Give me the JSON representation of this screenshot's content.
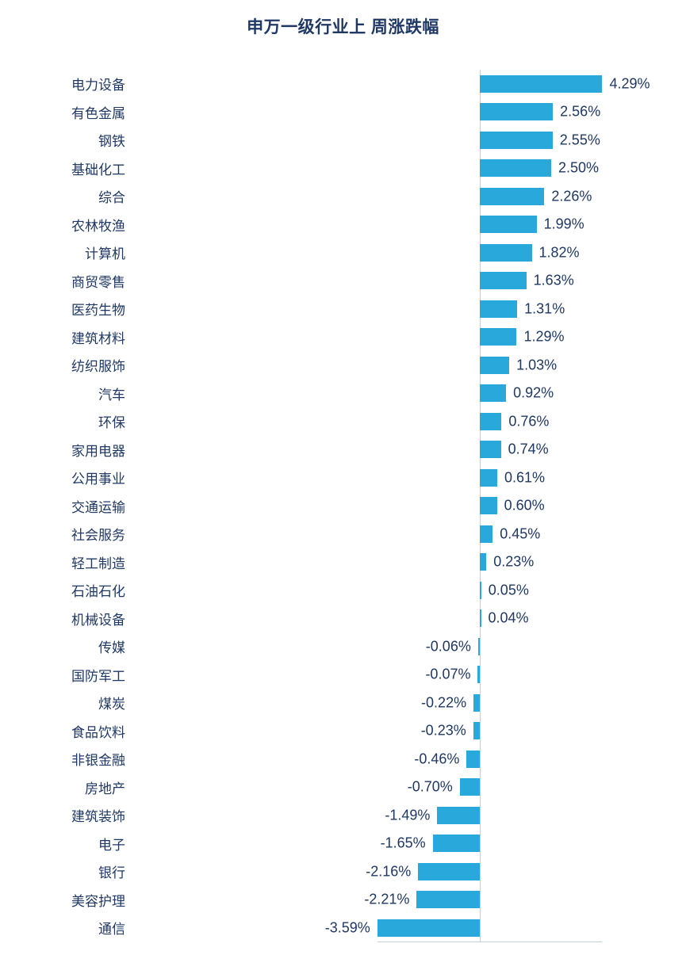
{
  "title": "申万一级行业上 周涨跌幅",
  "chart_data": {
    "type": "bar",
    "orientation": "horizontal",
    "title": "申万一级行业上 周涨跌幅",
    "categories": [
      "电力设备",
      "有色金属",
      "钢铁",
      "基础化工",
      "综合",
      "农林牧渔",
      "计算机",
      "商贸零售",
      "医药生物",
      "建筑材料",
      "纺织服饰",
      "汽车",
      "环保",
      "家用电器",
      "公用事业",
      "交通运输",
      "社会服务",
      "轻工制造",
      "石油石化",
      "机械设备",
      "传媒",
      "国防军工",
      "煤炭",
      "食品饮料",
      "非银金融",
      "房地产",
      "建筑装饰",
      "电子",
      "银行",
      "美容护理",
      "通信"
    ],
    "values": [
      4.29,
      2.56,
      2.55,
      2.5,
      2.26,
      1.99,
      1.82,
      1.63,
      1.31,
      1.29,
      1.03,
      0.92,
      0.76,
      0.74,
      0.61,
      0.6,
      0.45,
      0.23,
      0.05,
      0.04,
      -0.06,
      -0.07,
      -0.22,
      -0.23,
      -0.46,
      -0.7,
      -1.49,
      -1.65,
      -2.16,
      -2.21,
      -3.59
    ],
    "labels": [
      "4.29%",
      "2.56%",
      "2.55%",
      "2.50%",
      "2.26%",
      "1.99%",
      "1.82%",
      "1.63%",
      "1.31%",
      "1.29%",
      "1.03%",
      "0.92%",
      "0.76%",
      "0.74%",
      "0.61%",
      "0.60%",
      "0.45%",
      "0.23%",
      "0.05%",
      "0.04%",
      "-0.06%",
      "-0.07%",
      "-0.22%",
      "-0.23%",
      "-0.46%",
      "-0.70%",
      "-1.49%",
      "-1.65%",
      "-2.16%",
      "-2.21%",
      "-3.59%"
    ],
    "unit": "%",
    "bar_color": "#29A8DC",
    "text_color": "#1F3864",
    "axis_color": "#C5CDD6",
    "xlim": [
      -3.59,
      4.29
    ],
    "grid": false,
    "legend": false,
    "value_labels_shown": true
  }
}
